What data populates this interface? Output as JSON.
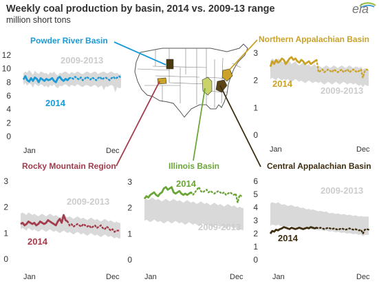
{
  "header": {
    "title": "Weekly coal production by basin, 2014 vs. 2009-13 range",
    "subtitle": "million short tons",
    "logo_text": "eia"
  },
  "colors": {
    "powder_river": "#1a9ad6",
    "northern_appalachian": "#c9a227",
    "rocky_mountain": "#a23b4b",
    "illinois": "#6aa637",
    "central_appalachian": "#3e2d10",
    "range_band": "#d9d9d9",
    "range_text": "#cccccc",
    "axis_text": "#333333",
    "map_fill": "#ffffff",
    "map_stroke": "#555555"
  },
  "map": {
    "highlighted_basins": [
      "powder-river",
      "northern-appalachian",
      "rocky-mountain",
      "illinois",
      "central-appalachian"
    ]
  },
  "chart_data": [
    {
      "id": "powder-river",
      "type": "line",
      "title": "Powder River Basin",
      "x_tick_labels": [
        "Jan",
        "Dec"
      ],
      "ylim": [
        0,
        12
      ],
      "y_ticks": [
        0,
        2,
        4,
        6,
        8,
        10,
        12
      ],
      "range_label": "2009-2013",
      "year_label": "2014",
      "band_upper": [
        9.3,
        9.6,
        9.4,
        9.8,
        9.5,
        9.1,
        9.7,
        9.4,
        9.2,
        9.6,
        9.5,
        9.3,
        9.4,
        9.1,
        9.5,
        9.3,
        9.6,
        9.2,
        9.0,
        9.4,
        9.3,
        9.5,
        9.6,
        9.4,
        9.2,
        9.5,
        9.4,
        9.3,
        9.6,
        9.5,
        9.3,
        9.2,
        9.4,
        9.6,
        9.5,
        9.3,
        9.4,
        9.6,
        9.5,
        9.2,
        9.4,
        9.5,
        9.6,
        9.4,
        9.3,
        9.5,
        9.6,
        9.4,
        9.3,
        9.4,
        9.1,
        9.2
      ],
      "band_lower": [
        7.6,
        7.9,
        7.5,
        7.8,
        7.7,
        7.2,
        7.8,
        7.6,
        7.4,
        7.7,
        7.6,
        7.3,
        7.5,
        7.2,
        7.6,
        7.4,
        7.7,
        7.3,
        7.1,
        7.5,
        7.4,
        7.6,
        7.7,
        7.5,
        7.3,
        7.6,
        7.5,
        7.4,
        7.7,
        7.6,
        7.4,
        7.3,
        7.5,
        7.6,
        7.5,
        7.3,
        7.4,
        7.6,
        7.5,
        7.2,
        7.4,
        7.5,
        6.8,
        7.4,
        7.3,
        7.5,
        7.6,
        7.4,
        6.5,
        7.3,
        7.1,
        7.2
      ],
      "actual_weeks": 25,
      "values_2014": [
        8.4,
        8.9,
        8.3,
        8.1,
        8.6,
        8.2,
        8.7,
        8.5,
        8.0,
        8.6,
        8.4,
        8.2,
        8.5,
        8.3,
        8.4,
        8.6,
        8.2,
        8.0,
        8.6,
        8.8,
        8.4,
        8.2,
        8.5,
        8.3,
        8.6,
        8.7,
        8.5,
        8.8,
        8.6,
        8.4,
        8.7,
        8.3,
        8.5,
        8.8,
        8.6,
        8.4,
        8.7,
        8.5,
        8.3,
        8.6,
        8.8,
        8.4,
        8.6,
        8.7,
        8.5,
        8.3,
        8.6,
        8.8,
        8.5,
        8.7,
        8.9,
        8.6
      ]
    },
    {
      "id": "northern-appalachian",
      "type": "line",
      "title": "Northern Appalachian Basin",
      "x_tick_labels": [
        "Jan",
        "Dec"
      ],
      "ylim": [
        0,
        3
      ],
      "y_ticks": [
        0,
        1,
        2,
        3
      ],
      "range_label": "2009-2013",
      "year_label": "2014",
      "band_upper": [
        2.7,
        2.8,
        2.75,
        2.7,
        2.8,
        2.75,
        2.7,
        2.65,
        2.7,
        2.75,
        2.7,
        2.6,
        2.65,
        2.7,
        2.6,
        2.55,
        2.6,
        2.65,
        2.6,
        2.55,
        2.6,
        2.5,
        2.55,
        2.6,
        2.5,
        2.55,
        2.5,
        2.45,
        2.5,
        2.55,
        2.5,
        2.45,
        2.5,
        2.55,
        2.5,
        2.45,
        2.5,
        2.55,
        2.5,
        2.45,
        2.5,
        2.55,
        2.5,
        2.45,
        2.5,
        2.5,
        2.45,
        2.5,
        2.4,
        2.45,
        2.4,
        2.4
      ],
      "band_lower": [
        2.05,
        2.1,
        2.05,
        2.0,
        2.1,
        2.05,
        2.0,
        2.05,
        2.0,
        2.05,
        2.0,
        1.95,
        2.0,
        2.05,
        2.0,
        1.95,
        2.0,
        1.95,
        1.9,
        1.95,
        2.0,
        1.95,
        1.9,
        1.95,
        1.95,
        1.9,
        1.95,
        1.9,
        1.85,
        1.9,
        1.95,
        1.9,
        1.85,
        1.9,
        1.95,
        1.9,
        1.85,
        1.9,
        1.95,
        1.9,
        1.85,
        1.9,
        1.9,
        1.85,
        1.9,
        1.85,
        1.8,
        1.85,
        1.75,
        1.85,
        1.8,
        1.8
      ],
      "actual_weeks": 25,
      "values_2014": [
        2.5,
        2.7,
        2.6,
        2.75,
        2.65,
        2.7,
        2.8,
        2.75,
        2.6,
        2.7,
        2.8,
        2.85,
        2.75,
        2.8,
        2.7,
        2.65,
        2.75,
        2.7,
        2.6,
        2.65,
        2.7,
        2.6,
        2.65,
        2.7,
        2.75,
        2.3,
        2.35,
        2.4,
        2.3,
        2.35,
        2.4,
        2.35,
        2.3,
        2.4,
        2.35,
        2.3,
        2.35,
        2.4,
        2.3,
        2.35,
        2.4,
        2.3,
        2.35,
        2.4,
        2.35,
        2.3,
        2.35,
        2.4,
        2.1,
        2.35,
        2.4,
        2.35
      ]
    },
    {
      "id": "rocky-mountain",
      "type": "line",
      "title": "Rocky Mountain Region",
      "x_tick_labels": [
        "Jan",
        "Dec"
      ],
      "ylim": [
        0,
        3
      ],
      "y_ticks": [
        0,
        1,
        2,
        3
      ],
      "range_label": "2009-2013",
      "year_label": "2014",
      "band_upper": [
        1.75,
        1.8,
        1.75,
        1.7,
        1.8,
        1.75,
        1.7,
        1.75,
        1.7,
        1.65,
        1.7,
        1.75,
        1.7,
        1.65,
        1.7,
        1.75,
        1.7,
        1.65,
        1.7,
        1.65,
        1.6,
        1.65,
        1.7,
        1.65,
        1.6,
        1.65,
        1.6,
        1.55,
        1.6,
        1.65,
        1.6,
        1.55,
        1.6,
        1.55,
        1.5,
        1.55,
        1.6,
        1.55,
        1.5,
        1.55,
        1.5,
        1.45,
        1.5,
        1.55,
        1.5,
        1.45,
        1.5,
        1.45,
        1.4,
        1.45,
        1.4,
        1.4
      ],
      "band_lower": [
        1.15,
        1.2,
        1.15,
        1.1,
        1.2,
        1.15,
        1.1,
        1.15,
        1.1,
        1.05,
        1.1,
        1.15,
        1.1,
        1.05,
        1.1,
        1.15,
        1.1,
        1.05,
        1.1,
        1.05,
        1.0,
        1.05,
        1.1,
        1.05,
        1.0,
        1.05,
        1.0,
        0.95,
        1.0,
        1.05,
        1.0,
        0.95,
        1.0,
        0.95,
        0.9,
        0.95,
        1.0,
        0.95,
        0.9,
        0.95,
        0.9,
        0.85,
        0.9,
        0.95,
        0.9,
        0.85,
        0.9,
        0.85,
        0.8,
        0.85,
        0.8,
        0.8
      ],
      "actual_weeks": 25,
      "values_2014": [
        1.35,
        1.4,
        1.3,
        1.35,
        1.45,
        1.4,
        1.35,
        1.4,
        1.3,
        1.35,
        1.45,
        1.4,
        1.35,
        1.4,
        1.5,
        1.45,
        1.4,
        1.35,
        1.3,
        1.45,
        1.55,
        1.4,
        1.7,
        1.5,
        1.45,
        1.3,
        1.35,
        1.25,
        1.3,
        1.35,
        1.3,
        1.25,
        1.35,
        1.3,
        1.25,
        1.3,
        1.2,
        1.25,
        1.3,
        1.2,
        1.25,
        1.3,
        1.2,
        1.15,
        1.25,
        1.2,
        1.1,
        1.15,
        1.05,
        1.1,
        1.1,
        1.1
      ]
    },
    {
      "id": "illinois",
      "type": "line",
      "title": "Illinois Basin",
      "x_tick_labels": [
        "Jan",
        "Dec"
      ],
      "ylim": [
        0,
        3
      ],
      "y_ticks": [
        0,
        1,
        2,
        3
      ],
      "range_label": "2009-2013",
      "year_label": "2014",
      "band_upper": [
        2.3,
        2.35,
        2.3,
        2.35,
        2.4,
        2.35,
        2.3,
        2.35,
        2.3,
        2.25,
        2.3,
        2.35,
        2.3,
        2.25,
        2.3,
        2.35,
        2.3,
        2.25,
        2.3,
        2.25,
        2.2,
        2.25,
        2.3,
        2.25,
        2.2,
        2.25,
        2.2,
        2.15,
        2.2,
        2.25,
        2.2,
        2.15,
        2.2,
        2.15,
        2.1,
        2.15,
        2.2,
        2.15,
        2.1,
        2.15,
        2.1,
        2.05,
        2.1,
        2.15,
        2.1,
        2.05,
        2.1,
        2.05,
        2.0,
        2.05,
        2.0,
        2.0
      ],
      "band_lower": [
        1.5,
        1.55,
        1.5,
        1.45,
        1.5,
        1.55,
        1.5,
        1.45,
        1.5,
        1.45,
        1.4,
        1.45,
        1.5,
        1.45,
        1.4,
        1.45,
        1.5,
        1.45,
        1.4,
        1.45,
        1.4,
        1.35,
        1.4,
        1.45,
        1.4,
        1.35,
        1.4,
        1.35,
        1.3,
        1.35,
        1.4,
        1.35,
        1.3,
        1.35,
        1.3,
        1.25,
        1.3,
        1.35,
        1.3,
        1.25,
        1.3,
        1.25,
        1.2,
        1.25,
        1.3,
        1.25,
        1.2,
        1.25,
        1.15,
        1.2,
        1.15,
        1.15
      ],
      "actual_weeks": 25,
      "values_2014": [
        2.35,
        2.45,
        2.4,
        2.5,
        2.55,
        2.6,
        2.5,
        2.45,
        2.55,
        2.6,
        2.75,
        2.8,
        2.7,
        2.75,
        2.8,
        2.6,
        2.55,
        2.6,
        2.65,
        2.55,
        2.5,
        2.55,
        2.5,
        2.55,
        2.6,
        2.5,
        2.6,
        2.7,
        2.8,
        2.65,
        2.6,
        2.65,
        2.7,
        2.6,
        2.65,
        2.6,
        2.55,
        2.6,
        2.65,
        2.6,
        2.55,
        2.6,
        2.5,
        2.55,
        2.6,
        2.55,
        2.5,
        2.55,
        2.2,
        2.5,
        2.45,
        2.45
      ]
    },
    {
      "id": "central-appalachian",
      "type": "line",
      "title": "Central Appalachian Basin",
      "x_tick_labels": [
        "Jan",
        "Dec"
      ],
      "ylim": [
        0,
        6
      ],
      "y_ticks": [
        0,
        1,
        2,
        3,
        4,
        5,
        6
      ],
      "range_label": "2009-2013",
      "year_label": "2014",
      "band_upper": [
        4.3,
        4.4,
        4.35,
        4.3,
        4.4,
        4.3,
        4.2,
        4.25,
        4.2,
        4.1,
        4.15,
        4.2,
        4.1,
        4.05,
        4.1,
        4.0,
        3.95,
        4.0,
        3.9,
        3.85,
        3.9,
        3.8,
        3.85,
        3.8,
        3.75,
        3.7,
        3.75,
        3.7,
        3.65,
        3.7,
        3.6,
        3.55,
        3.6,
        3.55,
        3.5,
        3.55,
        3.5,
        3.45,
        3.5,
        3.45,
        3.4,
        3.45,
        3.4,
        3.35,
        3.4,
        3.35,
        3.3,
        3.35,
        3.3,
        3.3,
        3.3,
        3.3
      ],
      "band_lower": [
        2.6,
        2.7,
        2.65,
        2.6,
        2.7,
        2.6,
        2.55,
        2.6,
        2.55,
        2.5,
        2.55,
        2.6,
        2.5,
        2.45,
        2.5,
        2.45,
        2.4,
        2.45,
        2.4,
        2.35,
        2.4,
        2.35,
        2.3,
        2.35,
        2.3,
        2.25,
        2.3,
        2.25,
        2.2,
        2.25,
        2.2,
        2.15,
        2.2,
        2.15,
        2.1,
        2.15,
        2.1,
        2.05,
        2.1,
        2.05,
        2.0,
        2.05,
        2.0,
        1.95,
        2.0,
        1.95,
        1.9,
        1.95,
        1.8,
        1.9,
        1.9,
        1.9
      ],
      "actual_weeks": 25,
      "values_2014": [
        2.0,
        2.2,
        2.15,
        2.3,
        2.25,
        2.35,
        2.4,
        2.5,
        2.45,
        2.4,
        2.35,
        2.45,
        2.4,
        2.35,
        2.4,
        2.45,
        2.4,
        2.35,
        2.4,
        2.45,
        2.4,
        2.5,
        2.45,
        2.4,
        2.45,
        2.4,
        2.45,
        2.4,
        2.35,
        2.4,
        2.45,
        2.4,
        2.35,
        2.4,
        2.35,
        2.3,
        2.35,
        2.4,
        2.35,
        2.3,
        2.35,
        2.4,
        2.35,
        2.3,
        2.35,
        2.3,
        2.25,
        2.3,
        2.0,
        2.3,
        2.35,
        2.3
      ]
    }
  ]
}
